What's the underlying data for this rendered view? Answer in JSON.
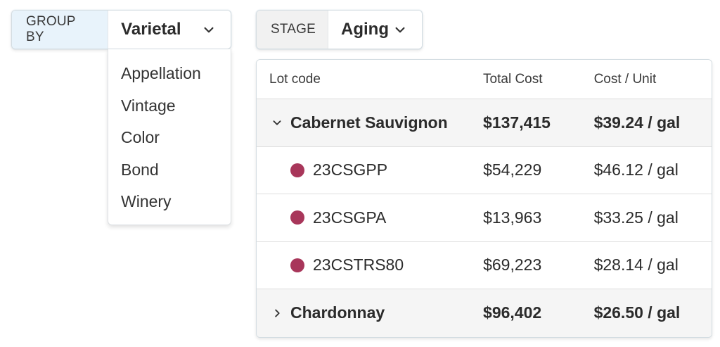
{
  "group_by": {
    "label": "GROUP BY",
    "value": "Varietal",
    "options": [
      "Appellation",
      "Vintage",
      "Color",
      "Bond",
      "Winery"
    ]
  },
  "stage": {
    "label": "STAGE",
    "value": "Aging"
  },
  "table": {
    "columns": [
      "Lot code",
      "Total Cost",
      "Cost / Unit"
    ],
    "groups": [
      {
        "name": "Cabernet Sauvignon",
        "total_cost": "$137,415",
        "cost_per_unit": "$39.24 / gal",
        "expanded": true,
        "expander_icon": "chevron-down-icon",
        "lots": [
          {
            "code": "23CSGPP",
            "total_cost": "$54,229",
            "cost_per_unit": "$46.12 / gal",
            "color": "#a8365a"
          },
          {
            "code": "23CSGPA",
            "total_cost": "$13,963",
            "cost_per_unit": "$33.25 / gal",
            "color": "#a8365a"
          },
          {
            "code": "23CSTRS80",
            "total_cost": "$69,223",
            "cost_per_unit": "$28.14 / gal",
            "color": "#a8365a"
          }
        ]
      },
      {
        "name": "Chardonnay",
        "total_cost": "$96,402",
        "cost_per_unit": "$26.50 / gal",
        "expanded": false,
        "expander_icon": "chevron-right-icon",
        "lots": []
      }
    ]
  },
  "colors": {
    "group_by_label_bg": "#e8f3fb",
    "stage_label_bg": "#f1f1f1",
    "group_row_bg": "#f5f5f5",
    "red_wine_dot": "#a8365a"
  }
}
